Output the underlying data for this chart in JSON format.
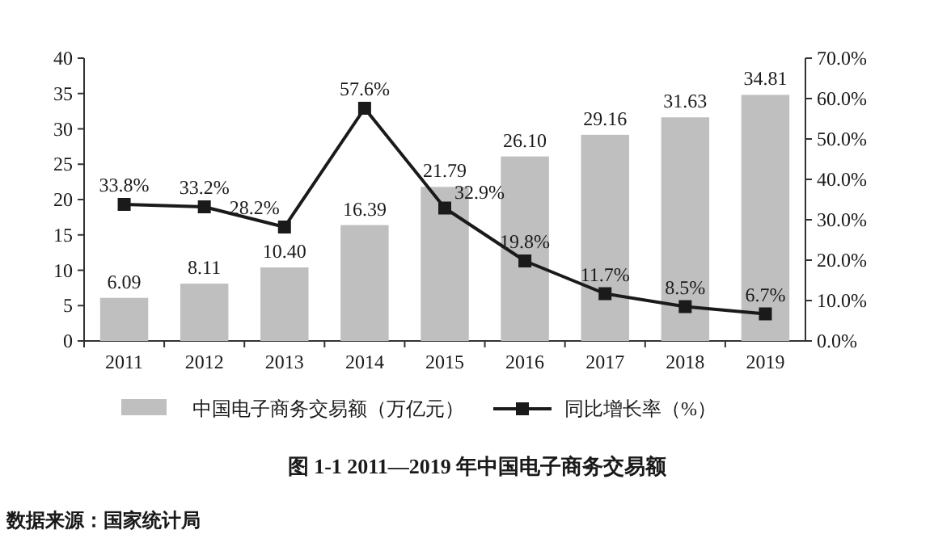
{
  "chart_data": {
    "type": "bar",
    "title": "图 1-1    2011—2019 年中国电子商务交易额",
    "annotations": [
      "数据来源：国家统计局"
    ],
    "categories": [
      "2011",
      "2012",
      "2013",
      "2014",
      "2015",
      "2016",
      "2017",
      "2018",
      "2019"
    ],
    "series": [
      {
        "name": "中国电子商务交易额（万亿元）",
        "color": "#bfbfbf",
        "values": [
          6.09,
          8.11,
          10.4,
          16.39,
          21.79,
          26.1,
          29.16,
          31.63,
          34.81
        ],
        "value_labels": [
          "6.09",
          "8.11",
          "10.40",
          "16.39",
          "21.79",
          "26.10",
          "29.16",
          "31.63",
          "34.81"
        ]
      },
      {
        "type": "line",
        "name": "同比增长率（%）",
        "color": "#1a1a1a",
        "axis": "y2",
        "marker": "square",
        "values": [
          33.8,
          33.2,
          28.2,
          57.6,
          32.9,
          19.8,
          11.7,
          8.5,
          6.7
        ],
        "value_labels": [
          "33.8%",
          "33.2%",
          "28.2%",
          "57.6%",
          "32.9%",
          "19.8%",
          "11.7%",
          "8.5%",
          "6.7%"
        ]
      }
    ],
    "ylim": [
      0,
      40
    ],
    "yticks": [
      0,
      5,
      10,
      15,
      20,
      25,
      30,
      35,
      40
    ],
    "y2lim": [
      0,
      70
    ],
    "y2ticks": [
      {
        "value": 0,
        "label": "0.0%"
      },
      {
        "value": 10,
        "label": "10.0%"
      },
      {
        "value": 20,
        "label": "20.0%"
      },
      {
        "value": 30,
        "label": "30.0%"
      },
      {
        "value": 40,
        "label": "40.0%"
      },
      {
        "value": 50,
        "label": "50.0%"
      },
      {
        "value": 60,
        "label": "60.0%"
      },
      {
        "value": 70,
        "label": "70.0%"
      }
    ],
    "legend": "bottom"
  }
}
